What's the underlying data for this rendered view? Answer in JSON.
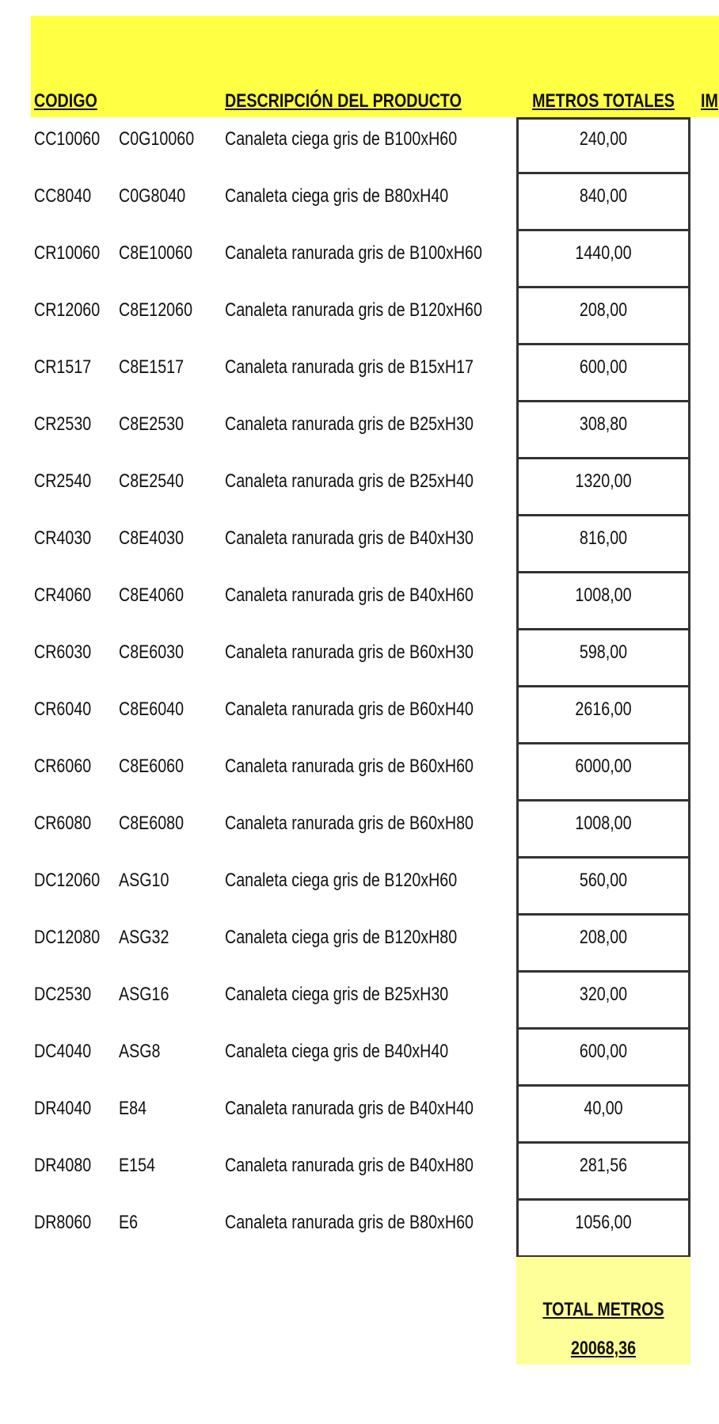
{
  "header": {
    "code": "CODIGO",
    "description": "DESCRIPCIÓN DEL PRODUCTO",
    "meters": "METROS TOTALES",
    "cut": "IM"
  },
  "table": {
    "rows": [
      [
        "CC10060",
        "C0G10060",
        "Canaleta ciega gris de B100xH60",
        "240,00"
      ],
      [
        "CC8040",
        "C0G8040",
        "Canaleta ciega gris de B80xH40",
        "840,00"
      ],
      [
        "CR10060",
        "C8E10060",
        "Canaleta ranurada gris de B100xH60",
        "1440,00"
      ],
      [
        "CR12060",
        "C8E12060",
        "Canaleta ranurada gris de B120xH60",
        "208,00"
      ],
      [
        "CR1517",
        "C8E1517",
        "Canaleta ranurada gris de B15xH17",
        "600,00"
      ],
      [
        "CR2530",
        "C8E2530",
        "Canaleta ranurada gris de B25xH30",
        "308,80"
      ],
      [
        "CR2540",
        "C8E2540",
        "Canaleta ranurada gris de B25xH40",
        "1320,00"
      ],
      [
        "CR4030",
        "C8E4030",
        "Canaleta ranurada gris de B40xH30",
        "816,00"
      ],
      [
        "CR4060",
        "C8E4060",
        "Canaleta ranurada gris de B40xH60",
        "1008,00"
      ],
      [
        "CR6030",
        "C8E6030",
        "Canaleta ranurada gris de B60xH30",
        "598,00"
      ],
      [
        "CR6040",
        "C8E6040",
        "Canaleta ranurada gris de B60xH40",
        "2616,00"
      ],
      [
        "CR6060",
        "C8E6060",
        "Canaleta ranurada gris de B60xH60",
        "6000,00"
      ],
      [
        "CR6080",
        "C8E6080",
        "Canaleta ranurada gris de B60xH80",
        "1008,00"
      ],
      [
        "DC12060",
        "ASG10",
        "Canaleta ciega gris de B120xH60",
        "560,00"
      ],
      [
        "DC12080",
        "ASG32",
        "Canaleta ciega gris de B120xH80",
        "208,00"
      ],
      [
        "DC2530",
        "ASG16",
        "Canaleta ciega gris de B25xH30",
        "320,00"
      ],
      [
        "DC4040",
        "ASG8",
        "Canaleta ciega gris de B40xH40",
        "600,00"
      ],
      [
        "DR4040",
        "E84",
        "Canaleta ranurada gris de B40xH40",
        "40,00"
      ],
      [
        "DR4080",
        "E154",
        "Canaleta ranurada gris de B40xH80",
        "281,56"
      ],
      [
        "DR8060",
        "E6",
        "Canaleta ranurada gris de B80xH60",
        "1056,00"
      ]
    ]
  },
  "total": {
    "label": "TOTAL METROS",
    "value": "20068,36"
  }
}
